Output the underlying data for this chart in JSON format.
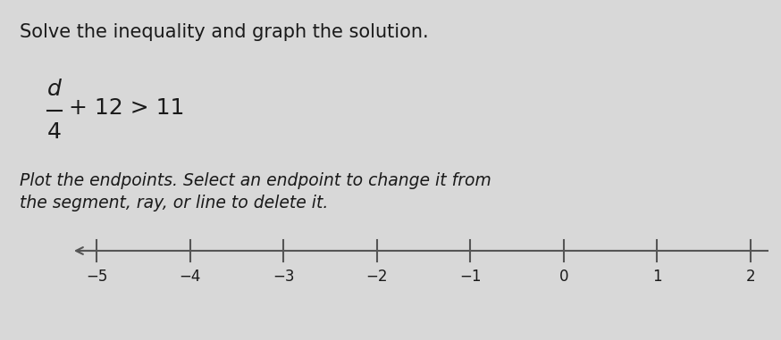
{
  "title": "Solve the inequality and graph the solution.",
  "instruction_line1": "Plot the endpoints. Select an endpoint to change it from",
  "instruction_line2": "the segment, ray, or line to delete it.",
  "tick_positions": [
    -5,
    -4,
    -3,
    -2,
    -1,
    0,
    1,
    2
  ],
  "tick_labels": [
    "−5",
    "−4",
    "−3",
    "−2",
    "−1",
    "0",
    "1",
    "2"
  ],
  "number_line_min": -5,
  "number_line_max": 2,
  "background_color": "#d8d8d8",
  "text_color": "#1a1a1a",
  "line_color": "#555555",
  "title_fontsize": 15,
  "instruction_fontsize": 13.5,
  "equation_fontsize": 18,
  "tick_label_fontsize": 12
}
